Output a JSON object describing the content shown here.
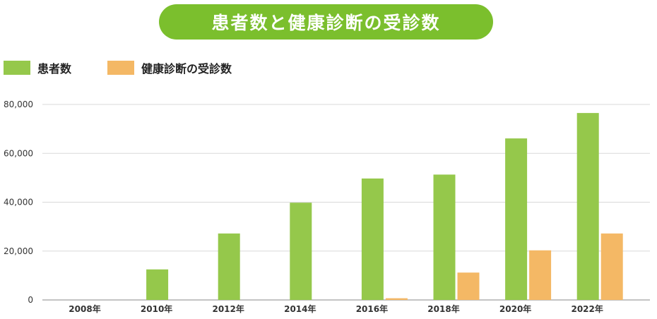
{
  "title": "患者数と健康診断の受診数",
  "colors": {
    "title_bg": "#7bbf2d",
    "patients": "#95c84b",
    "checkups": "#f4b865",
    "grid": "#d9d9d9",
    "axis": "#888888"
  },
  "legend": [
    {
      "label": "患者数",
      "color": "#95c84b"
    },
    {
      "label": "健康診断の受診数",
      "color": "#f4b865"
    }
  ],
  "chart_data": {
    "type": "bar",
    "title": "患者数と健康診断の受診数",
    "xlabel": "",
    "ylabel": "",
    "ylim": [
      0,
      80000
    ],
    "y_ticks": [
      0,
      20000,
      40000,
      60000,
      80000
    ],
    "y_tick_labels": [
      "0",
      "20,000",
      "40,000",
      "60,000",
      "80,000"
    ],
    "categories": [
      "2008年",
      "2010年",
      "2012年",
      "2014年",
      "2016年",
      "2018年",
      "2020年",
      "2022年"
    ],
    "series": [
      {
        "name": "患者数",
        "color": "#95c84b",
        "values": [
          0,
          12500,
          27200,
          39800,
          49700,
          51300,
          66100,
          76500
        ]
      },
      {
        "name": "健康診断の受診数",
        "color": "#f4b865",
        "values": [
          0,
          0,
          0,
          0,
          700,
          11200,
          20300,
          27200
        ]
      }
    ],
    "grid": true,
    "legend_position": "top-left"
  }
}
